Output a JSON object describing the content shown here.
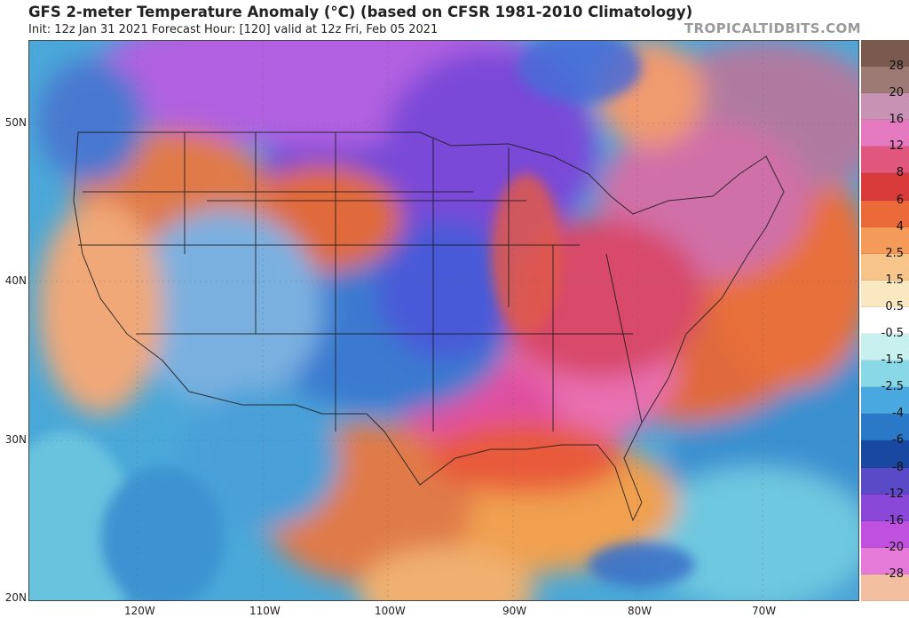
{
  "header": {
    "title": "GFS 2-meter Temperature Anomaly (°C) (based on CFSR 1981-2010 Climatology)",
    "subtitle": "Init: 12z Jan 31 2021   Forecast Hour: [120]   valid at 12z Fri, Feb 05 2021",
    "brand": "TROPICALTIDBITS.COM"
  },
  "map": {
    "lat_labels": [
      "50N",
      "40N",
      "30N",
      "20N"
    ],
    "lon_labels": [
      "120W",
      "110W",
      "100W",
      "90W",
      "80W",
      "70W"
    ]
  },
  "colorbar": {
    "labels": [
      "28",
      "20",
      "16",
      "12",
      "8",
      "6",
      "4",
      "2.5",
      "1.5",
      "0.5",
      "-0.5",
      "-1.5",
      "-2.5",
      "-4",
      "-6",
      "-8",
      "-12",
      "-16",
      "-20",
      "-28"
    ],
    "colors": [
      "#7a5a4e",
      "#9e7a74",
      "#c792b4",
      "#e57ac0",
      "#e0567c",
      "#d93a3a",
      "#ec6a3a",
      "#f59b5a",
      "#f7c48a",
      "#fae8c0",
      "#ffffff",
      "#c8f0ee",
      "#88d8e8",
      "#4aa8e0",
      "#2a78c8",
      "#1848a0",
      "#5a4ac8",
      "#8a48d8",
      "#c050e0",
      "#e67ad8",
      "#f2c0a0"
    ]
  }
}
